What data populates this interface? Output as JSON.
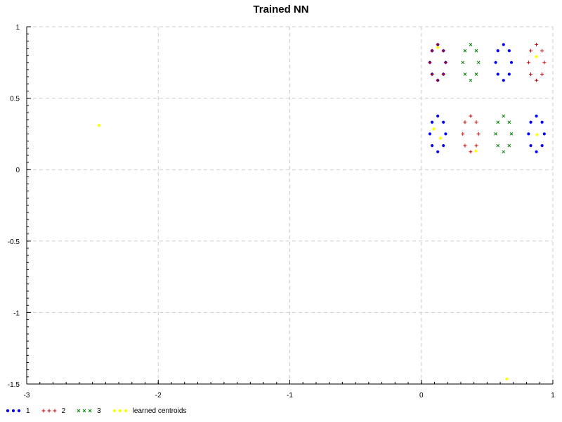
{
  "chart_data": {
    "type": "scatter",
    "title": "Trained NN",
    "xlabel": "",
    "ylabel": "",
    "xlim": [
      -3,
      1
    ],
    "ylim": [
      -1.5,
      1
    ],
    "x_ticks": [
      -3,
      -2,
      -1,
      0,
      1
    ],
    "y_ticks": [
      1,
      0.5,
      0,
      -0.5,
      -1,
      -1.5
    ],
    "grid": true,
    "legend_position": "bottom-left",
    "series": [
      {
        "name": "1",
        "marker": "dot",
        "color": "#0000ff",
        "points": [
          [
            0.125,
            0.875
          ],
          [
            0.168,
            0.832
          ],
          [
            0.185,
            0.75
          ],
          [
            0.168,
            0.668
          ],
          [
            0.125,
            0.625
          ],
          [
            0.082,
            0.668
          ],
          [
            0.065,
            0.75
          ],
          [
            0.082,
            0.832
          ],
          [
            0.625,
            0.875
          ],
          [
            0.668,
            0.832
          ],
          [
            0.685,
            0.75
          ],
          [
            0.668,
            0.668
          ],
          [
            0.625,
            0.625
          ],
          [
            0.582,
            0.668
          ],
          [
            0.565,
            0.75
          ],
          [
            0.582,
            0.832
          ],
          [
            0.125,
            0.375
          ],
          [
            0.168,
            0.332
          ],
          [
            0.185,
            0.25
          ],
          [
            0.168,
            0.168
          ],
          [
            0.125,
            0.125
          ],
          [
            0.082,
            0.168
          ],
          [
            0.065,
            0.25
          ],
          [
            0.082,
            0.332
          ],
          [
            0.875,
            0.375
          ],
          [
            0.918,
            0.332
          ],
          [
            0.935,
            0.25
          ],
          [
            0.918,
            0.168
          ],
          [
            0.875,
            0.125
          ],
          [
            0.832,
            0.168
          ],
          [
            0.815,
            0.25
          ],
          [
            0.832,
            0.332
          ]
        ]
      },
      {
        "name": "2",
        "marker": "plus",
        "color": "#cc0000",
        "points": [
          [
            0.125,
            0.875
          ],
          [
            0.168,
            0.832
          ],
          [
            0.185,
            0.75
          ],
          [
            0.168,
            0.668
          ],
          [
            0.125,
            0.625
          ],
          [
            0.082,
            0.668
          ],
          [
            0.065,
            0.75
          ],
          [
            0.082,
            0.832
          ],
          [
            0.875,
            0.875
          ],
          [
            0.918,
            0.832
          ],
          [
            0.935,
            0.75
          ],
          [
            0.918,
            0.668
          ],
          [
            0.875,
            0.625
          ],
          [
            0.832,
            0.668
          ],
          [
            0.815,
            0.75
          ],
          [
            0.832,
            0.832
          ],
          [
            0.375,
            0.375
          ],
          [
            0.418,
            0.332
          ],
          [
            0.435,
            0.25
          ],
          [
            0.418,
            0.168
          ],
          [
            0.375,
            0.125
          ],
          [
            0.332,
            0.168
          ],
          [
            0.315,
            0.25
          ],
          [
            0.332,
            0.332
          ]
        ]
      },
      {
        "name": "3",
        "marker": "cross",
        "color": "#008000",
        "points": [
          [
            0.375,
            0.875
          ],
          [
            0.418,
            0.832
          ],
          [
            0.435,
            0.75
          ],
          [
            0.418,
            0.668
          ],
          [
            0.375,
            0.625
          ],
          [
            0.332,
            0.668
          ],
          [
            0.315,
            0.75
          ],
          [
            0.332,
            0.832
          ],
          [
            0.625,
            0.375
          ],
          [
            0.668,
            0.332
          ],
          [
            0.685,
            0.25
          ],
          [
            0.668,
            0.168
          ],
          [
            0.625,
            0.125
          ],
          [
            0.582,
            0.168
          ],
          [
            0.565,
            0.25
          ],
          [
            0.582,
            0.332
          ]
        ]
      },
      {
        "name": "learned centroids",
        "marker": "dot",
        "color": "#ffff00",
        "points": [
          [
            -2.45,
            0.31
          ],
          [
            0.125,
            0.855
          ],
          [
            0.875,
            0.79
          ],
          [
            0.095,
            0.285
          ],
          [
            0.145,
            0.22
          ],
          [
            0.88,
            0.245
          ],
          [
            0.415,
            0.13
          ],
          [
            0.65,
            -1.465
          ]
        ]
      }
    ]
  }
}
